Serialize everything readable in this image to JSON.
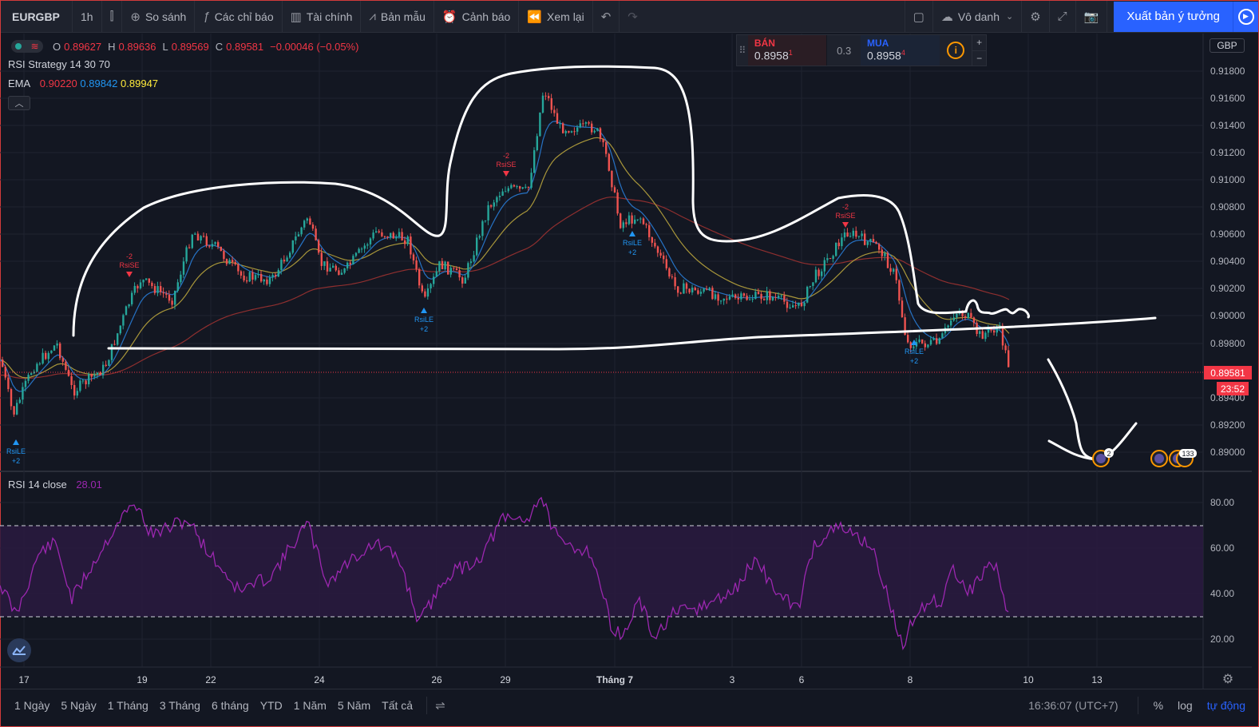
{
  "toolbar": {
    "symbol": "EURGBP",
    "interval": "1h",
    "compare": "So sánh",
    "indicators": "Các chỉ báo",
    "financials": "Tài chính",
    "templates": "Bản mẫu",
    "alert": "Cảnh báo",
    "replay": "Xem lại",
    "layout_name": "Vô danh",
    "publish": "Xuất bản ý tưởng"
  },
  "legend": {
    "open_k": "O",
    "open": "0.89627",
    "high_k": "H",
    "high": "0.89636",
    "low_k": "L",
    "low": "0.89569",
    "close_k": "C",
    "close": "0.89581",
    "change": "−0.00046 (−0.05%)",
    "strategy": "RSI Strategy 14 30 70",
    "ema_label": "EMA",
    "ema1": "0.90220",
    "ema2": "0.89842",
    "ema3": "0.89947",
    "rsi_label": "RSI 14 close",
    "rsi_value": "28.01"
  },
  "trade": {
    "sell_label": "BÁN",
    "sell_price": "0.8958",
    "sell_sup": "1",
    "spread": "0.3",
    "buy_label": "MUA",
    "buy_price": "0.8958",
    "buy_sup": "4",
    "plus": "+",
    "minus": "−"
  },
  "currency": "GBP",
  "price_axis": {
    "labels": [
      "0.91800",
      "0.91600",
      "0.91400",
      "0.91200",
      "0.91000",
      "0.90800",
      "0.90600",
      "0.90400",
      "0.90200",
      "0.90000",
      "0.89800",
      "0.89400",
      "0.89200",
      "0.89000"
    ],
    "last_price": "0.89581",
    "countdown": "23:52"
  },
  "rsi_axis": {
    "labels": [
      "80.00",
      "60.00",
      "40.00",
      "20.00"
    ]
  },
  "time_axis": {
    "labels": [
      "17",
      "19",
      "22",
      "24",
      "26",
      "29",
      "Tháng 7",
      "3",
      "6",
      "8",
      "10",
      "13"
    ]
  },
  "signals": [
    {
      "type": "RsiLE",
      "qty": "+2"
    },
    {
      "type": "RsiSE",
      "qty": "-2"
    },
    {
      "type": "RsiLE",
      "qty": "+2"
    },
    {
      "type": "RsiSE",
      "qty": "-2"
    },
    {
      "type": "RsiLE",
      "qty": "+2"
    },
    {
      "type": "RsiSE",
      "qty": "-2"
    },
    {
      "type": "RsiLE",
      "qty": "+2"
    }
  ],
  "events": {
    "badge1": "2",
    "badge2": "133"
  },
  "bottom": {
    "ranges": [
      "1 Ngày",
      "5 Ngày",
      "1 Tháng",
      "3 Tháng",
      "6 tháng",
      "YTD",
      "1 Năm",
      "5 Năm",
      "Tất cả"
    ],
    "clock": "16:36:07 (UTC+7)",
    "percent": "%",
    "log": "log",
    "auto": "tự động"
  },
  "colors": {
    "bull": "#26a69a",
    "bear": "#ef5350",
    "ema_red": "#b33a3a",
    "ema_blue": "#2196f3",
    "ema_yellow": "#c8b23a",
    "rsi": "#9c27b0",
    "accent": "#2962ff"
  }
}
